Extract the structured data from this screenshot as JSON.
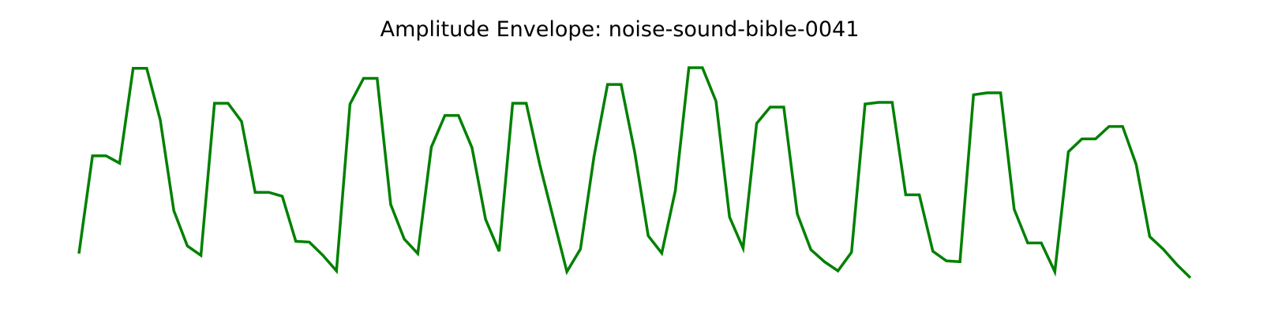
{
  "chart_data": {
    "type": "line",
    "title": "Amplitude Envelope: noise-sound-bible-0041",
    "xlabel": "",
    "ylabel": "",
    "axes_visible": false,
    "grid": false,
    "legend": "none",
    "color": "#008000",
    "x": [
      0,
      1,
      2,
      3,
      4,
      5,
      6,
      7,
      8,
      9,
      10,
      11,
      12,
      13,
      14,
      15,
      16,
      17,
      18,
      19,
      20,
      21,
      22,
      23,
      24,
      25,
      26,
      27,
      28,
      29,
      30,
      31,
      32,
      33,
      34,
      35,
      36,
      37,
      38,
      39,
      40,
      41,
      42,
      43,
      44,
      45,
      46,
      47,
      48,
      49,
      50,
      51,
      52,
      53,
      54,
      55,
      56,
      57,
      58,
      59,
      60,
      61,
      62,
      63,
      64,
      65,
      66,
      67,
      68,
      69,
      70,
      71,
      72,
      73,
      74,
      75,
      76,
      77,
      78,
      79,
      80,
      81,
      82
    ],
    "values": [
      0.089,
      0.568,
      0.568,
      0.532,
      0.997,
      0.997,
      0.744,
      0.299,
      0.126,
      0.08,
      0.826,
      0.826,
      0.736,
      0.389,
      0.389,
      0.37,
      0.149,
      0.145,
      0.08,
      0.004,
      0.822,
      0.948,
      0.948,
      0.33,
      0.16,
      0.089,
      0.611,
      0.766,
      0.766,
      0.608,
      0.257,
      0.1,
      0.826,
      0.826,
      0.525,
      0.262,
      0.0,
      0.111,
      0.564,
      0.918,
      0.918,
      0.587,
      0.176,
      0.091,
      0.397,
      1.0,
      1.0,
      0.836,
      0.268,
      0.115,
      0.727,
      0.807,
      0.807,
      0.283,
      0.108,
      0.049,
      0.004,
      0.095,
      0.822,
      0.83,
      0.83,
      0.377,
      0.377,
      0.1,
      0.053,
      0.049,
      0.867,
      0.877,
      0.877,
      0.306,
      0.141,
      0.141,
      0.0,
      0.588,
      0.651,
      0.651,
      0.712,
      0.712,
      0.526,
      0.172,
      0.11,
      0.035,
      -0.03
    ],
    "ylim": [
      -0.04,
      1.04
    ]
  }
}
